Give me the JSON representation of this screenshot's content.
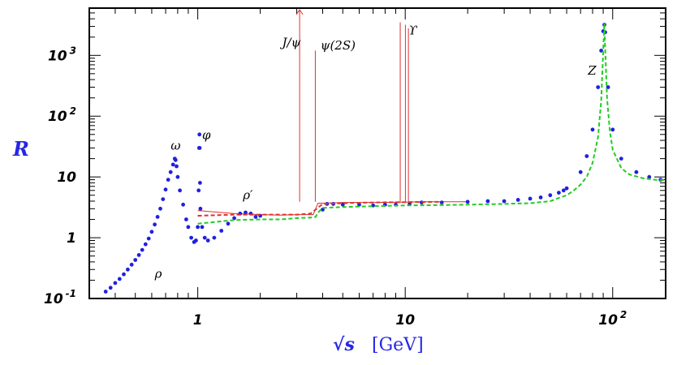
{
  "chart_data": {
    "type": "scatter",
    "title": "",
    "ylabel": "R",
    "xlabel_math": "√s",
    "xlabel_unit": "[GeV]",
    "x_scale": "log",
    "y_scale": "log",
    "xlim": [
      0.3,
      180
    ],
    "ylim": [
      0.1,
      6000
    ],
    "grid": false,
    "legend": "none",
    "x_ticks": [
      {
        "value": 1,
        "label": "1",
        "exp": ""
      },
      {
        "value": 10,
        "label": "10",
        "exp": ""
      },
      {
        "value": 100,
        "label": "10",
        "exp": "2"
      }
    ],
    "y_ticks": [
      {
        "value": 0.1,
        "label": "10",
        "exp": "-1"
      },
      {
        "value": 1,
        "label": "1",
        "exp": ""
      },
      {
        "value": 10,
        "label": "10",
        "exp": ""
      },
      {
        "value": 100,
        "label": "10",
        "exp": "2"
      },
      {
        "value": 1000,
        "label": "10",
        "exp": "3"
      }
    ],
    "annotations": [
      {
        "text": "ρ",
        "x": 0.62,
        "y": 0.22
      },
      {
        "text": "ω",
        "x": 0.74,
        "y": 28
      },
      {
        "text": "φ",
        "x": 1.05,
        "y": 42
      },
      {
        "text": "ρ′",
        "x": 1.65,
        "y": 4.3
      },
      {
        "text": "J/ψ",
        "x": 2.55,
        "y": 1400
      },
      {
        "text": "ψ(2S)",
        "x": 3.9,
        "y": 1250
      },
      {
        "text": "ϒ",
        "x": 10.4,
        "y": 2200
      },
      {
        "text": "Z",
        "x": 76,
        "y": 480
      }
    ],
    "series": [
      {
        "color": "#2020e0",
        "x": [
          0.36,
          0.38,
          0.4,
          0.42,
          0.44,
          0.46,
          0.48,
          0.5,
          0.52,
          0.54,
          0.56,
          0.58,
          0.6,
          0.62,
          0.64,
          0.66,
          0.68,
          0.7,
          0.72,
          0.74,
          0.76,
          0.775,
          0.782,
          0.79,
          0.8,
          0.82,
          0.85,
          0.88,
          0.9,
          0.93,
          0.96,
          0.98,
          1.0,
          1.01,
          1.015,
          1.019,
          1.022,
          1.025,
          1.03,
          1.05,
          1.08,
          1.12,
          1.2,
          1.3,
          1.4,
          1.5,
          1.6,
          1.7,
          1.8,
          1.9,
          2.0,
          4.0,
          4.2,
          4.5,
          5,
          6,
          7,
          8,
          9,
          10.5,
          12,
          15,
          20,
          25,
          30,
          35,
          40,
          45,
          50,
          55,
          58,
          60,
          70,
          75,
          80,
          85,
          88,
          90,
          91.2,
          92,
          95,
          100,
          110,
          130,
          150,
          170
        ],
        "y": [
          0.13,
          0.15,
          0.18,
          0.21,
          0.25,
          0.3,
          0.36,
          0.43,
          0.52,
          0.63,
          0.78,
          0.97,
          1.25,
          1.65,
          2.2,
          3.0,
          4.3,
          6.2,
          9.0,
          12,
          16,
          20,
          19,
          15,
          10,
          6,
          3.5,
          2.0,
          1.5,
          1.0,
          0.85,
          0.9,
          1.5,
          6,
          30,
          50,
          30,
          8,
          3,
          1.5,
          1.0,
          0.9,
          1.0,
          1.3,
          1.7,
          2.1,
          2.5,
          2.6,
          2.5,
          2.2,
          2.3,
          2.9,
          3.6,
          3.6,
          3.5,
          3.5,
          3.4,
          3.5,
          3.5,
          3.6,
          3.8,
          3.8,
          3.9,
          4.0,
          4.0,
          4.2,
          4.4,
          4.6,
          5.0,
          5.5,
          6.0,
          6.5,
          12,
          22,
          60,
          300,
          1200,
          2500,
          3200,
          2400,
          300,
          60,
          20,
          12,
          10,
          9
        ]
      },
      {
        "color": "#22cc22",
        "dashed": true,
        "x": [
          1,
          1.5,
          2,
          2.5,
          3,
          3.5,
          3.7,
          3.8,
          4,
          5,
          7,
          10,
          15,
          20,
          30,
          40,
          50,
          55,
          60,
          65,
          70,
          75,
          80,
          85,
          88,
          90,
          91.2,
          92,
          94,
          97,
          100,
          110,
          120,
          140,
          160,
          180
        ],
        "y": [
          1.7,
          1.95,
          2.0,
          2.0,
          2.1,
          2.15,
          2.2,
          2.6,
          3.1,
          3.2,
          3.3,
          3.4,
          3.45,
          3.5,
          3.6,
          3.7,
          4.0,
          4.5,
          5.0,
          6.0,
          7.5,
          10,
          17,
          45,
          180,
          1200,
          3400,
          1300,
          190,
          55,
          28,
          14,
          11,
          9.5,
          9,
          8.8
        ]
      },
      {
        "color": "#e03030",
        "dashed": true,
        "x": [
          1,
          1.5,
          2,
          2.5,
          3,
          3.5,
          4,
          5,
          7,
          10,
          15
        ],
        "y": [
          2.3,
          2.4,
          2.4,
          2.4,
          2.4,
          2.5,
          3.6,
          3.7,
          3.8,
          3.85,
          3.9
        ]
      }
    ],
    "red_lines": [
      {
        "x": 3.097,
        "peak": 6000,
        "arrow": true
      },
      {
        "x": 3.686,
        "peak": 1200
      },
      {
        "x": 9.46,
        "peak": 3500
      },
      {
        "x": 10.02,
        "peak": 3200
      },
      {
        "x": 10.36,
        "peak": 2800
      }
    ],
    "baseline": {
      "color": "#e03030",
      "x": [
        1.0,
        1.5,
        2,
        2.5,
        3,
        3.6,
        3.8,
        4,
        5,
        7,
        10,
        12,
        20
      ],
      "y": [
        2.8,
        2.5,
        2.4,
        2.35,
        2.4,
        2.4,
        3.7,
        3.7,
        3.8,
        3.8,
        3.85,
        3.9,
        3.9
      ]
    }
  }
}
